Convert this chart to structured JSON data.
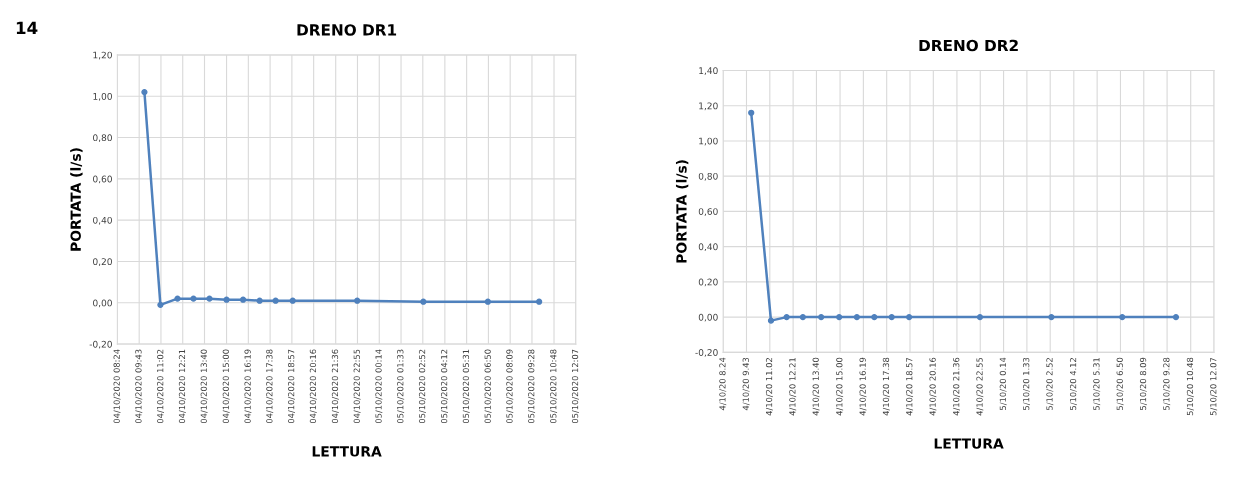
{
  "chart_data": [
    {
      "type": "line",
      "title": "DRENO DR1",
      "xlabel": "LETTURA",
      "ylabel": "PORTATA (l/s)",
      "annotations": [
        "14"
      ],
      "series": [
        {
          "color": "#4f81bd",
          "x": [
            "2020-10-04T10:02",
            "2020-10-04T11:00",
            "2020-10-04T12:02",
            "2020-10-04T13:00",
            "2020-10-04T13:58",
            "2020-10-04T15:00",
            "2020-10-04T16:00",
            "2020-10-04T17:00",
            "2020-10-04T17:58",
            "2020-10-04T19:00",
            "2020-10-04T22:54",
            "2020-10-05T02:54",
            "2020-10-05T06:48",
            "2020-10-05T09:54"
          ],
          "values": [
            1.02,
            -0.01,
            0.02,
            0.02,
            0.02,
            0.015,
            0.015,
            0.01,
            0.01,
            0.01,
            0.01,
            0.005,
            0.005,
            0.005
          ]
        }
      ],
      "marker": "circle",
      "line_style": "solid",
      "grid": true,
      "xlim": [
        "2020-10-04T08:24",
        "2020-10-05T12:07"
      ],
      "xticks": [
        {
          "value": "2020-10-04T08:24",
          "label": "04/10/2020 08:24"
        },
        {
          "value": "2020-10-04T09:43",
          "label": "04/10/2020 09:43"
        },
        {
          "value": "2020-10-04T11:02",
          "label": "04/10/2020 11:02"
        },
        {
          "value": "2020-10-04T12:21",
          "label": "04/10/2020 12:21"
        },
        {
          "value": "2020-10-04T13:40",
          "label": "04/10/2020 13:40"
        },
        {
          "value": "2020-10-04T15:00",
          "label": "04/10/2020 15:00"
        },
        {
          "value": "2020-10-04T16:19",
          "label": "04/10/2020 16:19"
        },
        {
          "value": "2020-10-04T17:38",
          "label": "04/10/2020 17:38"
        },
        {
          "value": "2020-10-04T18:57",
          "label": "04/10/2020 18:57"
        },
        {
          "value": "2020-10-04T20:16",
          "label": "04/10/2020 20:16"
        },
        {
          "value": "2020-10-04T21:36",
          "label": "04/10/2020 21:36"
        },
        {
          "value": "2020-10-04T22:55",
          "label": "04/10/2020 22:55"
        },
        {
          "value": "2020-10-05T00:14",
          "label": "05/10/2020 00:14"
        },
        {
          "value": "2020-10-05T01:33",
          "label": "05/10/2020 01:33"
        },
        {
          "value": "2020-10-05T02:52",
          "label": "05/10/2020 02:52"
        },
        {
          "value": "2020-10-05T04:12",
          "label": "05/10/2020 04:12"
        },
        {
          "value": "2020-10-05T05:31",
          "label": "05/10/2020 05:31"
        },
        {
          "value": "2020-10-05T06:50",
          "label": "05/10/2020 06:50"
        },
        {
          "value": "2020-10-05T08:09",
          "label": "05/10/2020 08:09"
        },
        {
          "value": "2020-10-05T09:28",
          "label": "05/10/2020 09:28"
        },
        {
          "value": "2020-10-05T10:48",
          "label": "05/10/2020 10:48"
        },
        {
          "value": "2020-10-05T12:07",
          "label": "05/10/2020 12:07"
        }
      ],
      "ylim": [
        -0.2,
        1.2
      ],
      "yticks": [
        {
          "value": -0.2,
          "label": "-0,20"
        },
        {
          "value": 0,
          "label": "0,00"
        },
        {
          "value": 0.2,
          "label": "0,20"
        },
        {
          "value": 0.4,
          "label": "0,40"
        },
        {
          "value": 0.6,
          "label": "0,60"
        },
        {
          "value": 0.8,
          "label": "0,80"
        },
        {
          "value": 1.0,
          "label": "1,00"
        },
        {
          "value": 1.2,
          "label": "1,20"
        }
      ]
    },
    {
      "type": "line",
      "title": "DRENO DR2",
      "xlabel": "LETTURA",
      "ylabel": "PORTATA (l/s)",
      "series": [
        {
          "color": "#4f81bd",
          "x": [
            "2020-10-04T09:59",
            "2020-10-04T11:06",
            "2020-10-04T11:59",
            "2020-10-04T12:54",
            "2020-10-04T13:56",
            "2020-10-04T14:57",
            "2020-10-04T15:57",
            "2020-10-04T16:56",
            "2020-10-04T17:55",
            "2020-10-04T18:54",
            "2020-10-04T22:54",
            "2020-10-05T02:56",
            "2020-10-05T06:56",
            "2020-10-05T09:58"
          ],
          "values": [
            1.16,
            -0.02,
            0.0,
            0.0,
            0.0,
            0.0,
            0.0,
            0.0,
            0.0,
            0.0,
            0.0,
            0.0,
            0.0,
            0.0
          ]
        }
      ],
      "marker": "circle",
      "line_style": "solid",
      "grid": true,
      "xlim": [
        "2020-10-04T08:24",
        "2020-10-05T12:07"
      ],
      "xticks": [
        {
          "value": "2020-10-04T08:24",
          "label": "4/10/20 8.24"
        },
        {
          "value": "2020-10-04T09:43",
          "label": "4/10/20 9.43"
        },
        {
          "value": "2020-10-04T11:02",
          "label": "4/10/20 11.02"
        },
        {
          "value": "2020-10-04T12:21",
          "label": "4/10/20 12.21"
        },
        {
          "value": "2020-10-04T13:40",
          "label": "4/10/20 13.40"
        },
        {
          "value": "2020-10-04T15:00",
          "label": "4/10/20 15.00"
        },
        {
          "value": "2020-10-04T16:19",
          "label": "4/10/20 16.19"
        },
        {
          "value": "2020-10-04T17:38",
          "label": "4/10/20 17.38"
        },
        {
          "value": "2020-10-04T18:57",
          "label": "4/10/20 18.57"
        },
        {
          "value": "2020-10-04T20:16",
          "label": "4/10/20 20.16"
        },
        {
          "value": "2020-10-04T21:36",
          "label": "4/10/20 21.36"
        },
        {
          "value": "2020-10-04T22:55",
          "label": "4/10/20 22.55"
        },
        {
          "value": "2020-10-05T00:14",
          "label": "5/10/20 0.14"
        },
        {
          "value": "2020-10-05T01:33",
          "label": "5/10/20 1.33"
        },
        {
          "value": "2020-10-05T02:52",
          "label": "5/10/20 2.52"
        },
        {
          "value": "2020-10-05T04:12",
          "label": "5/10/20 4.12"
        },
        {
          "value": "2020-10-05T05:31",
          "label": "5/10/20 5.31"
        },
        {
          "value": "2020-10-05T06:50",
          "label": "5/10/20 6.50"
        },
        {
          "value": "2020-10-05T08:09",
          "label": "5/10/20 8.09"
        },
        {
          "value": "2020-10-05T09:28",
          "label": "5/10/20 9.28"
        },
        {
          "value": "2020-10-05T10:48",
          "label": "5/10/20 10.48"
        },
        {
          "value": "2020-10-05T12:07",
          "label": "5/10/20 12.07"
        }
      ],
      "ylim": [
        -0.2,
        1.4
      ],
      "yticks": [
        {
          "value": -0.2,
          "label": "-0,20"
        },
        {
          "value": 0,
          "label": "0,00"
        },
        {
          "value": 0.2,
          "label": "0,20"
        },
        {
          "value": 0.4,
          "label": "0,40"
        },
        {
          "value": 0.6,
          "label": "0,60"
        },
        {
          "value": 0.8,
          "label": "0,80"
        },
        {
          "value": 1.0,
          "label": "1,00"
        },
        {
          "value": 1.2,
          "label": "1,20"
        },
        {
          "value": 1.4,
          "label": "1,40"
        }
      ]
    }
  ]
}
